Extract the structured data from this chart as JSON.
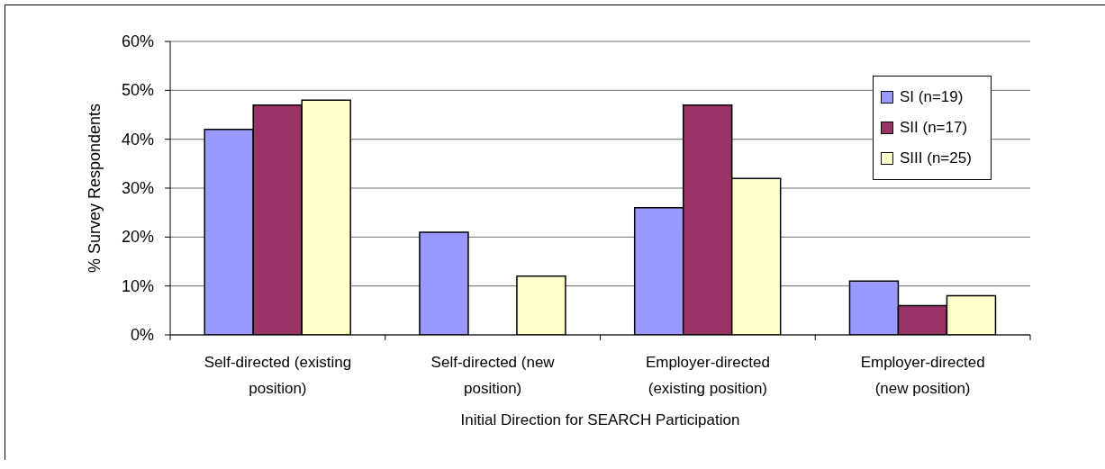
{
  "chart_data": {
    "type": "bar",
    "xlabel": "Initial Direction for SEARCH Participation",
    "ylabel": "% Survey Respondents",
    "categories": [
      "Self-directed (existing\nposition)",
      "Self-directed (new\nposition)",
      "Employer-directed\n(existing position)",
      "Employer-directed\n(new position)"
    ],
    "series": [
      {
        "name": "SI (n=19)",
        "color": "#9999ff",
        "values": [
          42,
          21,
          26,
          11
        ]
      },
      {
        "name": "SII (n=17)",
        "color": "#993366",
        "values": [
          47,
          0,
          47,
          6
        ]
      },
      {
        "name": "SIII (n=25)",
        "color": "#ffffcc",
        "values": [
          48,
          12,
          32,
          8
        ]
      }
    ],
    "ylim": [
      0,
      60
    ],
    "yticks": [
      {
        "value": 0,
        "label": "0%"
      },
      {
        "value": 10,
        "label": "10%"
      },
      {
        "value": 20,
        "label": "20%"
      },
      {
        "value": 30,
        "label": "30%"
      },
      {
        "value": 40,
        "label": "40%"
      },
      {
        "value": 50,
        "label": "50%"
      },
      {
        "value": 60,
        "label": "60%"
      }
    ],
    "grid": "y",
    "legend": "top right"
  }
}
